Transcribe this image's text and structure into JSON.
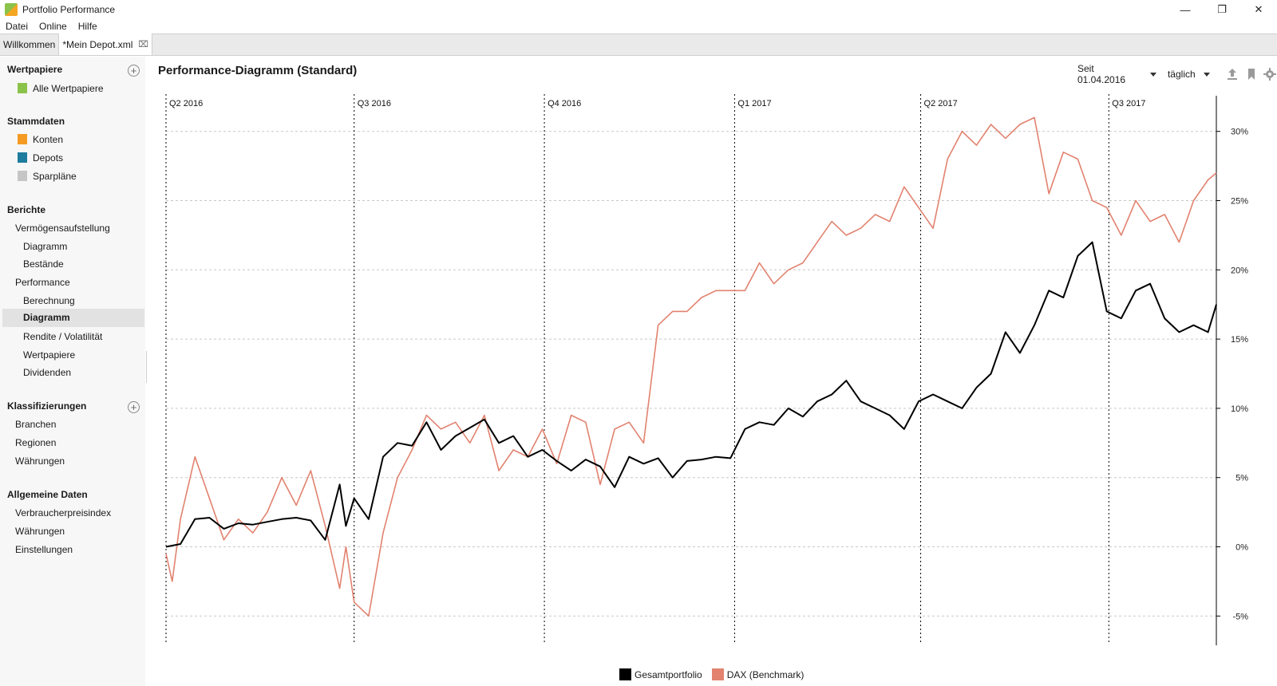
{
  "window": {
    "title": "Portfolio Performance"
  },
  "menu": {
    "items": [
      "Datei",
      "Online",
      "Hilfe"
    ]
  },
  "tabs": [
    {
      "label": "Willkommen"
    },
    {
      "label": "*Mein Depot.xml"
    }
  ],
  "sidebar": {
    "wertpapiere": {
      "header": "Wertpapiere",
      "items": [
        "Alle Wertpapiere"
      ]
    },
    "stammdaten": {
      "header": "Stammdaten",
      "items": [
        "Konten",
        "Depots",
        "Sparpläne"
      ]
    },
    "berichte": {
      "header": "Berichte",
      "items": [
        "Vermögensaufstellung",
        "Diagramm",
        "Bestände",
        "Performance",
        "Berechnung",
        "Diagramm",
        "Rendite / Volatilität",
        "Wertpapiere",
        "Dividenden"
      ]
    },
    "klassifizierungen": {
      "header": "Klassifizierungen",
      "items": [
        "Branchen",
        "Regionen",
        "Währungen"
      ]
    },
    "allgemein": {
      "header": "Allgemeine Daten",
      "items": [
        "Verbraucherpreisindex",
        "Währungen",
        "Einstellungen"
      ]
    }
  },
  "main": {
    "title": "Performance-Diagramm (Standard)",
    "period": "Seit 01.04.2016",
    "interval": "täglich"
  },
  "colors": {
    "portfolio": "#000000",
    "benchmark": "#e2826f",
    "konten": "#f59a23",
    "depots": "#1e7c9e",
    "sparplaene": "#c6c6c6",
    "wertpapiere": "#8bc34a"
  },
  "chart_data": {
    "type": "line",
    "quarters": [
      "Q2 2016",
      "Q3 2016",
      "Q4 2016",
      "Q1 2017",
      "Q2 2017",
      "Q3 2017"
    ],
    "quarter_starts": [
      "2016-04-01",
      "2016-07-01",
      "2016-10-01",
      "2017-01-01",
      "2017-04-01",
      "2017-07-01"
    ],
    "x_end": "2017-08-22",
    "ylim": [
      -7,
      32
    ],
    "yticks": [
      -5,
      0,
      5,
      10,
      15,
      20,
      25,
      30
    ],
    "ytick_labels": [
      "-5%",
      "0%",
      "5%",
      "10%",
      "15%",
      "20%",
      "25%",
      "30%"
    ],
    "legend": [
      "Gesamtportfolio",
      "DAX (Benchmark)"
    ],
    "grid": true,
    "series": [
      {
        "name": "Gesamtportfolio",
        "x": [
          "2016-04-01",
          "2016-04-08",
          "2016-04-15",
          "2016-04-22",
          "2016-04-29",
          "2016-05-06",
          "2016-05-13",
          "2016-05-20",
          "2016-05-27",
          "2016-06-03",
          "2016-06-10",
          "2016-06-17",
          "2016-06-24",
          "2016-06-27",
          "2016-07-01",
          "2016-07-08",
          "2016-07-15",
          "2016-07-22",
          "2016-07-29",
          "2016-08-05",
          "2016-08-12",
          "2016-08-19",
          "2016-08-26",
          "2016-09-02",
          "2016-09-09",
          "2016-09-16",
          "2016-09-23",
          "2016-09-30",
          "2016-10-07",
          "2016-10-14",
          "2016-10-21",
          "2016-10-28",
          "2016-11-04",
          "2016-11-11",
          "2016-11-18",
          "2016-11-25",
          "2016-12-02",
          "2016-12-09",
          "2016-12-16",
          "2016-12-23",
          "2016-12-30",
          "2017-01-06",
          "2017-01-13",
          "2017-01-20",
          "2017-01-27",
          "2017-02-03",
          "2017-02-10",
          "2017-02-17",
          "2017-02-24",
          "2017-03-03",
          "2017-03-10",
          "2017-03-17",
          "2017-03-24",
          "2017-03-31",
          "2017-04-07",
          "2017-04-14",
          "2017-04-21",
          "2017-04-28",
          "2017-05-05",
          "2017-05-12",
          "2017-05-19",
          "2017-05-26",
          "2017-06-02",
          "2017-06-09",
          "2017-06-16",
          "2017-06-23",
          "2017-06-30",
          "2017-07-07",
          "2017-07-14",
          "2017-07-21",
          "2017-07-28",
          "2017-08-04",
          "2017-08-11",
          "2017-08-18",
          "2017-08-22"
        ],
        "values": [
          0.0,
          0.2,
          2.0,
          2.1,
          1.3,
          1.7,
          1.6,
          1.8,
          2.0,
          2.1,
          1.9,
          0.5,
          4.5,
          1.5,
          3.5,
          2.0,
          6.5,
          7.5,
          7.3,
          9.0,
          7.0,
          8.0,
          8.6,
          9.2,
          7.5,
          8.0,
          6.5,
          7.0,
          6.2,
          5.5,
          6.3,
          5.8,
          4.3,
          6.5,
          6.0,
          6.4,
          5.0,
          6.2,
          6.3,
          6.5,
          6.4,
          8.5,
          9.0,
          8.8,
          10.0,
          9.4,
          10.5,
          11.0,
          12.0,
          10.5,
          10.0,
          9.5,
          8.5,
          10.5,
          11.0,
          10.5,
          10.0,
          11.5,
          12.5,
          15.5,
          14.0,
          16.0,
          18.5,
          18.0,
          21.0,
          22.0,
          17.0,
          16.5,
          18.5,
          19.0,
          16.5,
          15.5,
          16.0,
          15.5,
          17.5
        ]
      },
      {
        "name": "DAX (Benchmark)",
        "x": [
          "2016-04-01",
          "2016-04-04",
          "2016-04-08",
          "2016-04-15",
          "2016-04-22",
          "2016-04-29",
          "2016-05-06",
          "2016-05-13",
          "2016-05-20",
          "2016-05-27",
          "2016-06-03",
          "2016-06-10",
          "2016-06-17",
          "2016-06-24",
          "2016-06-27",
          "2016-07-01",
          "2016-07-08",
          "2016-07-15",
          "2016-07-22",
          "2016-07-29",
          "2016-08-05",
          "2016-08-12",
          "2016-08-19",
          "2016-08-26",
          "2016-09-02",
          "2016-09-09",
          "2016-09-16",
          "2016-09-23",
          "2016-09-30",
          "2016-10-07",
          "2016-10-14",
          "2016-10-21",
          "2016-10-28",
          "2016-11-04",
          "2016-11-11",
          "2016-11-18",
          "2016-11-25",
          "2016-12-02",
          "2016-12-09",
          "2016-12-16",
          "2016-12-23",
          "2016-12-30",
          "2017-01-06",
          "2017-01-13",
          "2017-01-20",
          "2017-01-27",
          "2017-02-03",
          "2017-02-10",
          "2017-02-17",
          "2017-02-24",
          "2017-03-03",
          "2017-03-10",
          "2017-03-17",
          "2017-03-24",
          "2017-03-31",
          "2017-04-07",
          "2017-04-14",
          "2017-04-21",
          "2017-04-28",
          "2017-05-05",
          "2017-05-12",
          "2017-05-19",
          "2017-05-26",
          "2017-06-02",
          "2017-06-09",
          "2017-06-16",
          "2017-06-23",
          "2017-06-30",
          "2017-07-07",
          "2017-07-14",
          "2017-07-21",
          "2017-07-28",
          "2017-08-04",
          "2017-08-11",
          "2017-08-18",
          "2017-08-22"
        ],
        "values": [
          -0.5,
          -2.5,
          2.0,
          6.5,
          3.5,
          0.5,
          2.0,
          1.0,
          2.5,
          5.0,
          3.0,
          5.5,
          1.5,
          -3.0,
          0.0,
          -4.0,
          -5.0,
          1.0,
          5.0,
          7.0,
          9.5,
          8.5,
          9.0,
          7.5,
          9.5,
          5.5,
          7.0,
          6.5,
          8.5,
          6.0,
          9.5,
          9.0,
          4.5,
          8.5,
          9.0,
          7.5,
          16.0,
          17.0,
          17.0,
          18.0,
          18.5,
          18.5,
          18.5,
          20.5,
          19.0,
          20.0,
          20.5,
          22.0,
          23.5,
          22.5,
          23.0,
          24.0,
          23.5,
          26.0,
          24.5,
          23.0,
          28.0,
          30.0,
          29.0,
          30.5,
          29.5,
          30.5,
          31.0,
          25.5,
          28.5,
          28.0,
          25.0,
          24.5,
          22.5,
          25.0,
          23.5,
          24.0,
          22.0,
          25.0,
          26.5,
          27.0
        ]
      }
    ]
  }
}
